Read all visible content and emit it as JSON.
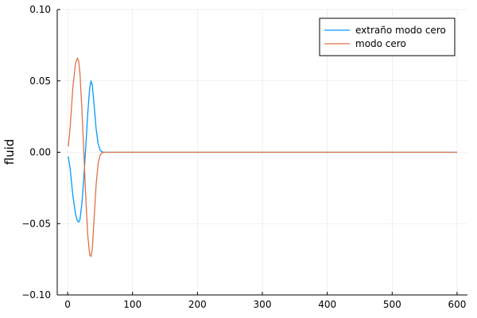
{
  "chart_data": {
    "type": "line",
    "title": "",
    "xlabel": "",
    "ylabel": "fluid",
    "xlim": [
      -16,
      616
    ],
    "ylim": [
      -0.1,
      0.1
    ],
    "xticks": [
      0,
      100,
      200,
      300,
      400,
      500,
      600
    ],
    "yticks": [
      -0.1,
      -0.05,
      0.0,
      0.05,
      0.1
    ],
    "ytick_labels": [
      "−0.10",
      "−0.05",
      "0.00",
      "0.05",
      "0.10"
    ],
    "xtick_labels": [
      "0",
      "100",
      "200",
      "300",
      "400",
      "500",
      "600"
    ],
    "grid": true,
    "legend_position": "top-right",
    "series": [
      {
        "name": "extraño modo cero",
        "color": "#009AFA",
        "x": [
          1,
          4,
          8,
          12,
          15,
          17,
          19,
          22,
          25,
          28,
          31,
          34,
          36,
          38,
          41,
          44,
          47,
          50,
          53,
          56,
          60,
          70,
          100,
          200,
          300,
          400,
          500,
          600
        ],
        "y": [
          -0.003,
          -0.012,
          -0.03,
          -0.043,
          -0.048,
          -0.049,
          -0.047,
          -0.036,
          -0.018,
          0.004,
          0.027,
          0.045,
          0.05,
          0.047,
          0.032,
          0.016,
          0.006,
          0.0015,
          0.0003,
          0.0,
          0.0,
          0.0,
          0.0,
          0.0,
          0.0,
          0.0,
          0.0,
          0.0
        ]
      },
      {
        "name": "modo cero",
        "color": "#E26F46",
        "x": [
          1,
          4,
          8,
          12,
          15,
          17,
          19,
          22,
          25,
          28,
          31,
          34,
          36,
          38,
          41,
          44,
          47,
          50,
          53,
          56,
          60,
          70,
          100,
          200,
          300,
          400,
          500,
          600
        ],
        "y": [
          0.004,
          0.018,
          0.045,
          0.062,
          0.066,
          0.064,
          0.055,
          0.03,
          0.0,
          -0.032,
          -0.058,
          -0.072,
          -0.073,
          -0.068,
          -0.045,
          -0.022,
          -0.008,
          -0.002,
          -0.0004,
          0.0,
          0.0,
          0.0,
          0.0,
          0.0,
          0.0,
          0.0,
          0.0,
          0.0
        ]
      }
    ]
  }
}
